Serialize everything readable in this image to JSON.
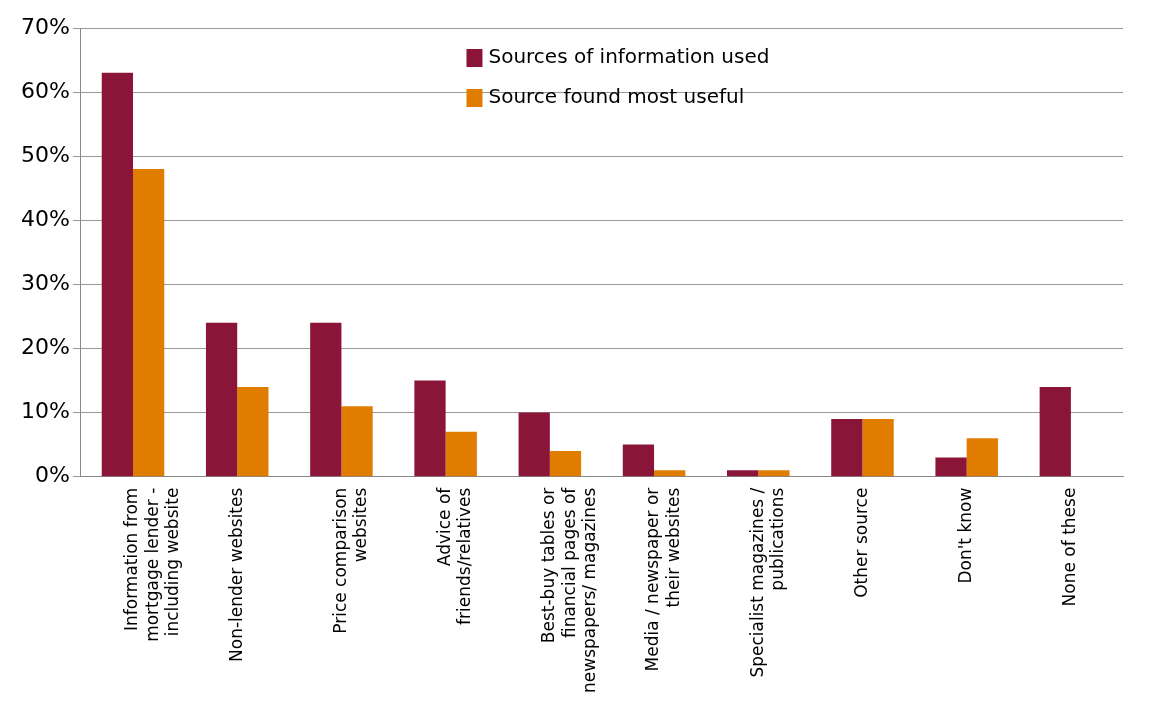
{
  "chart_data": {
    "type": "bar",
    "categories": [
      "Information from mortgage lender - including website",
      "Non-lender websites",
      "Price comparison websites",
      "Advice of friends/relatives",
      "Best-buy tables or financial pages of newspapers/ magazines",
      "Media / newspaper or their websites",
      "Specialist magazines / publications",
      "Other source",
      "Don't know",
      "None of these"
    ],
    "series": [
      {
        "name": "Sources of information used",
        "color": "#8b1538",
        "values": [
          63,
          24,
          24,
          15,
          10,
          5,
          1,
          9,
          3,
          14
        ]
      },
      {
        "name": "Source found most useful",
        "color": "#e07c00",
        "values": [
          48,
          14,
          11,
          7,
          4,
          1,
          1,
          9,
          6,
          null
        ]
      }
    ],
    "ylim": [
      0,
      70
    ],
    "yticks": [
      {
        "value": 0,
        "label": "0%"
      },
      {
        "value": 10,
        "label": "10%"
      },
      {
        "value": 20,
        "label": "20%"
      },
      {
        "value": 30,
        "label": "30%"
      },
      {
        "value": 40,
        "label": "40%"
      },
      {
        "value": 50,
        "label": "50%"
      },
      {
        "value": 60,
        "label": "60%"
      },
      {
        "value": 70,
        "label": "70%"
      }
    ],
    "grid": "y",
    "legend": "top"
  }
}
